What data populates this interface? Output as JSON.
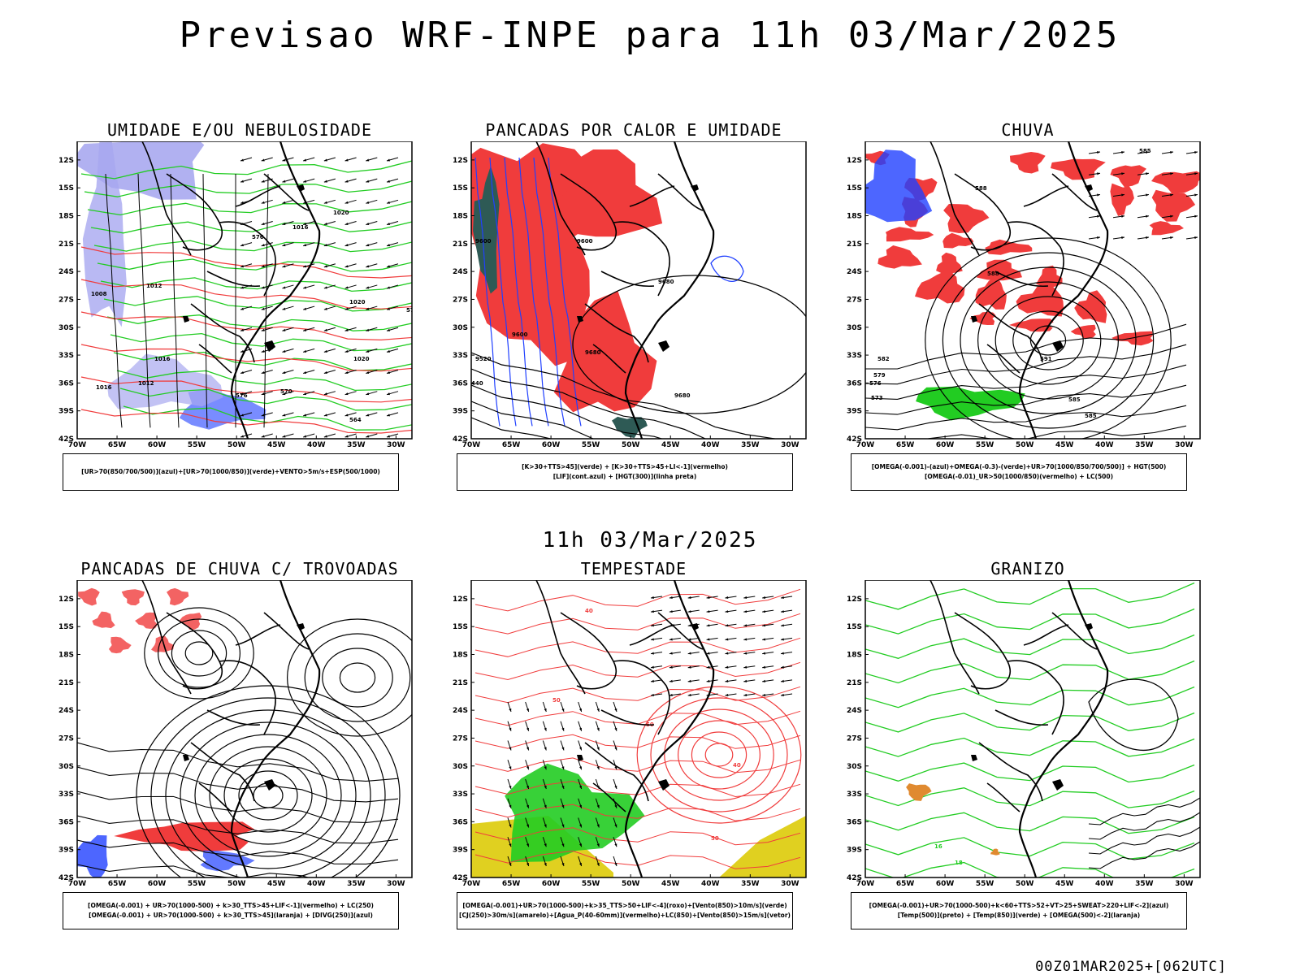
{
  "header": {
    "title": "Previsao WRF-INPE  para 11h 03/Mar/2025"
  },
  "subtitle": "11h 03/Mar/2025",
  "footer": "00Z01MAR2025+[062UTC]",
  "axes": {
    "lat_labels": [
      "12S",
      "15S",
      "18S",
      "21S",
      "24S",
      "27S",
      "30S",
      "33S",
      "36S",
      "39S",
      "42S"
    ],
    "lon_labels": [
      "70W",
      "65W",
      "60W",
      "55W",
      "50W",
      "45W",
      "40W",
      "35W",
      "30W"
    ]
  },
  "colors": {
    "red": "#f03c3c",
    "green": "#22cc22",
    "blue": "#2040ff",
    "lavender": "#a8a8f0",
    "yellow": "#e0d020",
    "darkteal": "#2e5a55"
  },
  "panels": [
    {
      "id": "umidade",
      "title": "UMIDADE E/OU NEBULOSIDADE",
      "legend": [
        "[UR>70(850/700/500)](azul)+[UR>70(1000/850)](verde)+VENTO>5m/s+ESP(500/1000)"
      ],
      "contour_labels": [
        "1020",
        "1016",
        "1012",
        "1008",
        "1016",
        "1020",
        "1020",
        "1012",
        "1016",
        "576",
        "570",
        "564",
        "570",
        "570",
        "576"
      ]
    },
    {
      "id": "pancadas_calor",
      "title": "PANCADAS POR CALOR E UMIDADE",
      "legend": [
        "[K>30+TTS>45](verde) + [K>30+TTS>45+LI<-1](vermelho)",
        "[LIF](cont.azul) + [HGT(300)](linha preta)"
      ],
      "contour_labels": [
        "9600",
        "9600",
        "9680",
        "9600",
        "9680",
        "9520",
        "9680",
        "440"
      ]
    },
    {
      "id": "chuva",
      "title": "CHUVA",
      "legend": [
        "[OMEGA(-0.001)-(azul)+OMEGA(-0.3)-(verde)+UR>70(1000/850/700/500)] + HGT(500)",
        "[OMEGA(-0.01)_UR>50(1000/850)(vermelho) + LC(500)"
      ],
      "contour_labels": [
        "585",
        "588",
        "588",
        "585",
        "591",
        "588",
        "585",
        "582",
        "579",
        "576",
        "573"
      ]
    },
    {
      "id": "trovoadas",
      "title": "PANCADAS DE CHUVA C/ TROVOADAS",
      "legend": [
        "[OMEGA(-0.001) + UR>70(1000-500) + k>30_TTS>45+LIF<-1](vermelho) + LC(250)",
        "[OMEGA(-0.001) + UR>70(1000-500) + k>30_TTS>45](laranja) + [DIVG(250)](azul)"
      ],
      "contour_labels": []
    },
    {
      "id": "tempestade",
      "title": "TEMPESTADE",
      "legend": [
        "[OMEGA(-0.001)+UR>70(1000-500)+k>35_TTS>50+LIF<-4](roxo)+[Vento(850)>10m/s](verde)",
        "[CJ(250)>30m/s](amarelo)+[Agua_P(40-60mm)](vermelho)+LC(850)+[Vento(850)>15m/s](vetor)"
      ],
      "contour_labels": [
        "40",
        "50",
        "40",
        "50",
        "50"
      ]
    },
    {
      "id": "granizo",
      "title": "GRANIZO",
      "legend": [
        "[OMEGA(-0.001)+UR>70(1000-500)+k<60+TTS>52+VT>25+SWEAT>220+LIF<-2](azul)",
        "[Temp(500)](preto) + [Temp(850)](verde) + [OMEGA(500)<-2](laranja)"
      ],
      "contour_labels": [
        "16",
        "18"
      ]
    }
  ]
}
